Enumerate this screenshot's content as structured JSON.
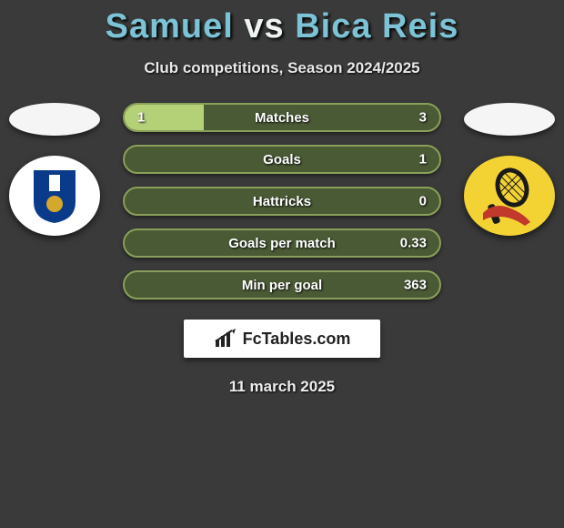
{
  "title": {
    "player1": "Samuel",
    "vs": "vs",
    "player2": "Bica Reis"
  },
  "subtitle": "Club competitions, Season 2024/2025",
  "colors": {
    "bg": "#3a3a3a",
    "accent": "#7cc3d6",
    "bar_bg": "#4a5a35",
    "bar_border": "#8aa05a",
    "bar_fill": "#b5d178",
    "text_light": "#ffffff"
  },
  "clubs": {
    "left": {
      "name": "porto",
      "bg_color": "#ffffff",
      "shield_color": "#0a3a8a"
    },
    "right": {
      "name": "leixoes",
      "bg_color": "#f3d233",
      "racket_color": "#c0392b"
    }
  },
  "stats": [
    {
      "label": "Matches",
      "left_value": "1",
      "right_value": "3",
      "left_pct": 25
    },
    {
      "label": "Goals",
      "left_value": "",
      "right_value": "1",
      "left_pct": 0
    },
    {
      "label": "Hattricks",
      "left_value": "",
      "right_value": "0",
      "left_pct": 0
    },
    {
      "label": "Goals per match",
      "left_value": "",
      "right_value": "0.33",
      "left_pct": 0
    },
    {
      "label": "Min per goal",
      "left_value": "",
      "right_value": "363",
      "left_pct": 0
    }
  ],
  "brand": "FcTables.com",
  "date": "11 march 2025"
}
